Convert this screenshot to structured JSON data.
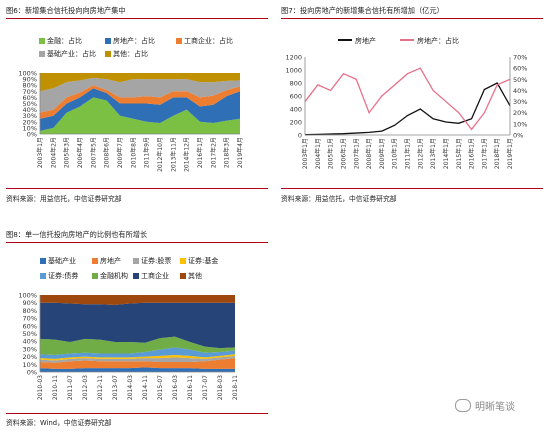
{
  "chart_data": [
    {
      "id": "chart6",
      "type": "area",
      "stacked": true,
      "title": "图6：新增集合信托投向向房地产集中",
      "source": "资料来源：用益信托，中信证券研究部",
      "y_ticks": [
        "0%",
        "10%",
        "20%",
        "30%",
        "40%",
        "50%",
        "60%",
        "70%",
        "80%",
        "90%",
        "100%"
      ],
      "x_ticks": [
        "2003年1月",
        "2004年2月",
        "2005年3月",
        "2006年4月",
        "2007年5月",
        "2008年6月",
        "2009年7月",
        "2010年8月",
        "2011年9月",
        "2012年10月",
        "2013年11月",
        "2014年12月",
        "2016年1月",
        "2017年2月",
        "2018年3月",
        "2019年4月"
      ],
      "ylim": [
        0,
        100
      ],
      "series": [
        {
          "name": "金融：占比",
          "color": "#7bc043",
          "values": [
            5,
            10,
            35,
            45,
            60,
            55,
            30,
            25,
            20,
            18,
            30,
            40,
            20,
            18,
            22,
            25
          ]
        },
        {
          "name": "房地产：占比",
          "color": "#2f6fb5",
          "values": [
            20,
            20,
            15,
            15,
            15,
            12,
            20,
            25,
            30,
            30,
            30,
            20,
            25,
            30,
            40,
            45
          ]
        },
        {
          "name": "工商企业：占比",
          "color": "#ed7d31",
          "values": [
            10,
            10,
            10,
            8,
            5,
            5,
            10,
            10,
            12,
            12,
            10,
            10,
            15,
            15,
            10,
            8
          ]
        },
        {
          "name": "基础产业：占比",
          "color": "#a5a5a5",
          "values": [
            35,
            35,
            25,
            20,
            12,
            18,
            25,
            30,
            28,
            30,
            20,
            20,
            25,
            22,
            15,
            10
          ]
        },
        {
          "name": "其他：占比",
          "color": "#bf9000",
          "values": [
            30,
            25,
            15,
            12,
            8,
            10,
            15,
            10,
            10,
            10,
            10,
            10,
            15,
            15,
            13,
            12
          ]
        }
      ]
    },
    {
      "id": "chart7",
      "type": "line",
      "title": "图7：投向房地产的新增集合信托有所增加（亿元）",
      "source": "资料来源：用益信托，中信证券研究部",
      "y_left_ticks": [
        "0",
        "200",
        "400",
        "600",
        "800",
        "1000",
        "1200"
      ],
      "y_right_ticks": [
        "0%",
        "10%",
        "20%",
        "30%",
        "40%",
        "50%",
        "60%",
        "70%"
      ],
      "ylim_left": [
        0,
        1200
      ],
      "ylim_right": [
        0,
        70
      ],
      "x_ticks": [
        "2003年1月",
        "2004年1月",
        "2005年1月",
        "2006年1月",
        "2007年1月",
        "2008年1月",
        "2009年1月",
        "2010年1月",
        "2011年1月",
        "2012年1月",
        "2013年1月",
        "2014年1月",
        "2015年1月",
        "2016年1月",
        "2017年1月",
        "2018年1月",
        "2019年1月"
      ],
      "series": [
        {
          "name": "房地产",
          "axis": "left",
          "color": "#111111",
          "values": [
            5,
            10,
            15,
            20,
            30,
            40,
            60,
            150,
            300,
            400,
            250,
            200,
            180,
            250,
            700,
            800,
            450
          ]
        },
        {
          "name": "房地产：占比",
          "axis": "right",
          "color": "#e8708a",
          "values": [
            30,
            45,
            40,
            55,
            50,
            20,
            35,
            45,
            55,
            60,
            40,
            30,
            20,
            5,
            20,
            45,
            50
          ]
        }
      ]
    },
    {
      "id": "chart8",
      "type": "area",
      "stacked": true,
      "title": "图8：单一信托投向房地产的比例也有所增长",
      "source": "资料来源：Wind，中信证券研究部",
      "y_ticks": [
        "0%",
        "10%",
        "20%",
        "30%",
        "40%",
        "50%",
        "60%",
        "70%",
        "80%",
        "90%",
        "100%"
      ],
      "x_ticks": [
        "2010-03",
        "2010-11",
        "2011-07",
        "2012-03",
        "2012-11",
        "2013-07",
        "2014-03",
        "2014-11",
        "2015-07",
        "2016-03",
        "2016-11",
        "2017-07",
        "2018-03",
        "2018-11"
      ],
      "ylim": [
        0,
        100
      ],
      "series": [
        {
          "name": "基础产业",
          "color": "#2f6fb5",
          "values": [
            5,
            4,
            4,
            5,
            5,
            5,
            5,
            6,
            5,
            5,
            5,
            4,
            4,
            4
          ]
        },
        {
          "name": "房地产",
          "color": "#ed7d31",
          "values": [
            8,
            8,
            10,
            10,
            9,
            9,
            9,
            8,
            8,
            8,
            8,
            10,
            12,
            14
          ]
        },
        {
          "name": "证券:股票",
          "color": "#a5a5a5",
          "values": [
            3,
            3,
            3,
            3,
            3,
            3,
            3,
            4,
            5,
            6,
            5,
            3,
            3,
            3
          ]
        },
        {
          "name": "证券:基金",
          "color": "#ffc000",
          "values": [
            2,
            2,
            2,
            2,
            2,
            2,
            2,
            2,
            3,
            3,
            3,
            2,
            2,
            2
          ]
        },
        {
          "name": "证券:债券",
          "color": "#5b9bd5",
          "values": [
            5,
            5,
            5,
            5,
            5,
            5,
            5,
            6,
            8,
            10,
            8,
            6,
            5,
            5
          ]
        },
        {
          "name": "金融机构",
          "color": "#70ad47",
          "values": [
            20,
            20,
            15,
            18,
            18,
            15,
            15,
            12,
            15,
            14,
            10,
            8,
            5,
            4
          ]
        },
        {
          "name": "工商企业",
          "color": "#264478",
          "values": [
            47,
            48,
            50,
            45,
            46,
            48,
            50,
            52,
            46,
            44,
            51,
            57,
            59,
            58
          ]
        },
        {
          "name": "其他",
          "color": "#9e480e",
          "values": [
            10,
            10,
            11,
            12,
            12,
            13,
            11,
            10,
            10,
            10,
            10,
            10,
            10,
            10
          ]
        }
      ]
    }
  ],
  "watermark": {
    "text": "明晰笔谈"
  }
}
